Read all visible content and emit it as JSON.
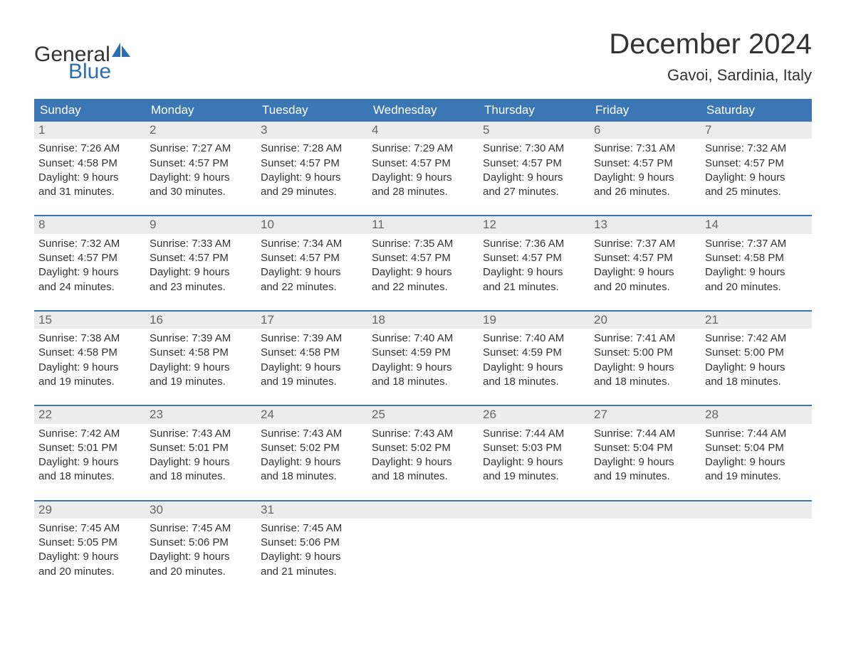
{
  "logo": {
    "text_general": "General",
    "text_blue": "Blue",
    "sail_color": "#2c6fb0",
    "general_color": "#333333",
    "blue_color": "#2c6fb0"
  },
  "header": {
    "month_title": "December 2024",
    "location": "Gavoi, Sardinia, Italy"
  },
  "colors": {
    "header_bg": "#3a77b4",
    "header_text": "#ffffff",
    "day_number_bg": "#ececec",
    "day_number_text": "#666666",
    "body_text": "#333333",
    "week_divider": "#3a77b4",
    "background": "#ffffff"
  },
  "typography": {
    "month_title_fontsize": 40,
    "location_fontsize": 22,
    "weekday_fontsize": 17,
    "day_number_fontsize": 17,
    "cell_fontsize": 15
  },
  "calendar": {
    "type": "table",
    "columns": [
      "Sunday",
      "Monday",
      "Tuesday",
      "Wednesday",
      "Thursday",
      "Friday",
      "Saturday"
    ],
    "weeks": [
      [
        {
          "n": "1",
          "sr": "Sunrise: 7:26 AM",
          "ss": "Sunset: 4:58 PM",
          "d1": "Daylight: 9 hours",
          "d2": "and 31 minutes."
        },
        {
          "n": "2",
          "sr": "Sunrise: 7:27 AM",
          "ss": "Sunset: 4:57 PM",
          "d1": "Daylight: 9 hours",
          "d2": "and 30 minutes."
        },
        {
          "n": "3",
          "sr": "Sunrise: 7:28 AM",
          "ss": "Sunset: 4:57 PM",
          "d1": "Daylight: 9 hours",
          "d2": "and 29 minutes."
        },
        {
          "n": "4",
          "sr": "Sunrise: 7:29 AM",
          "ss": "Sunset: 4:57 PM",
          "d1": "Daylight: 9 hours",
          "d2": "and 28 minutes."
        },
        {
          "n": "5",
          "sr": "Sunrise: 7:30 AM",
          "ss": "Sunset: 4:57 PM",
          "d1": "Daylight: 9 hours",
          "d2": "and 27 minutes."
        },
        {
          "n": "6",
          "sr": "Sunrise: 7:31 AM",
          "ss": "Sunset: 4:57 PM",
          "d1": "Daylight: 9 hours",
          "d2": "and 26 minutes."
        },
        {
          "n": "7",
          "sr": "Sunrise: 7:32 AM",
          "ss": "Sunset: 4:57 PM",
          "d1": "Daylight: 9 hours",
          "d2": "and 25 minutes."
        }
      ],
      [
        {
          "n": "8",
          "sr": "Sunrise: 7:32 AM",
          "ss": "Sunset: 4:57 PM",
          "d1": "Daylight: 9 hours",
          "d2": "and 24 minutes."
        },
        {
          "n": "9",
          "sr": "Sunrise: 7:33 AM",
          "ss": "Sunset: 4:57 PM",
          "d1": "Daylight: 9 hours",
          "d2": "and 23 minutes."
        },
        {
          "n": "10",
          "sr": "Sunrise: 7:34 AM",
          "ss": "Sunset: 4:57 PM",
          "d1": "Daylight: 9 hours",
          "d2": "and 22 minutes."
        },
        {
          "n": "11",
          "sr": "Sunrise: 7:35 AM",
          "ss": "Sunset: 4:57 PM",
          "d1": "Daylight: 9 hours",
          "d2": "and 22 minutes."
        },
        {
          "n": "12",
          "sr": "Sunrise: 7:36 AM",
          "ss": "Sunset: 4:57 PM",
          "d1": "Daylight: 9 hours",
          "d2": "and 21 minutes."
        },
        {
          "n": "13",
          "sr": "Sunrise: 7:37 AM",
          "ss": "Sunset: 4:57 PM",
          "d1": "Daylight: 9 hours",
          "d2": "and 20 minutes."
        },
        {
          "n": "14",
          "sr": "Sunrise: 7:37 AM",
          "ss": "Sunset: 4:58 PM",
          "d1": "Daylight: 9 hours",
          "d2": "and 20 minutes."
        }
      ],
      [
        {
          "n": "15",
          "sr": "Sunrise: 7:38 AM",
          "ss": "Sunset: 4:58 PM",
          "d1": "Daylight: 9 hours",
          "d2": "and 19 minutes."
        },
        {
          "n": "16",
          "sr": "Sunrise: 7:39 AM",
          "ss": "Sunset: 4:58 PM",
          "d1": "Daylight: 9 hours",
          "d2": "and 19 minutes."
        },
        {
          "n": "17",
          "sr": "Sunrise: 7:39 AM",
          "ss": "Sunset: 4:58 PM",
          "d1": "Daylight: 9 hours",
          "d2": "and 19 minutes."
        },
        {
          "n": "18",
          "sr": "Sunrise: 7:40 AM",
          "ss": "Sunset: 4:59 PM",
          "d1": "Daylight: 9 hours",
          "d2": "and 18 minutes."
        },
        {
          "n": "19",
          "sr": "Sunrise: 7:40 AM",
          "ss": "Sunset: 4:59 PM",
          "d1": "Daylight: 9 hours",
          "d2": "and 18 minutes."
        },
        {
          "n": "20",
          "sr": "Sunrise: 7:41 AM",
          "ss": "Sunset: 5:00 PM",
          "d1": "Daylight: 9 hours",
          "d2": "and 18 minutes."
        },
        {
          "n": "21",
          "sr": "Sunrise: 7:42 AM",
          "ss": "Sunset: 5:00 PM",
          "d1": "Daylight: 9 hours",
          "d2": "and 18 minutes."
        }
      ],
      [
        {
          "n": "22",
          "sr": "Sunrise: 7:42 AM",
          "ss": "Sunset: 5:01 PM",
          "d1": "Daylight: 9 hours",
          "d2": "and 18 minutes."
        },
        {
          "n": "23",
          "sr": "Sunrise: 7:43 AM",
          "ss": "Sunset: 5:01 PM",
          "d1": "Daylight: 9 hours",
          "d2": "and 18 minutes."
        },
        {
          "n": "24",
          "sr": "Sunrise: 7:43 AM",
          "ss": "Sunset: 5:02 PM",
          "d1": "Daylight: 9 hours",
          "d2": "and 18 minutes."
        },
        {
          "n": "25",
          "sr": "Sunrise: 7:43 AM",
          "ss": "Sunset: 5:02 PM",
          "d1": "Daylight: 9 hours",
          "d2": "and 18 minutes."
        },
        {
          "n": "26",
          "sr": "Sunrise: 7:44 AM",
          "ss": "Sunset: 5:03 PM",
          "d1": "Daylight: 9 hours",
          "d2": "and 19 minutes."
        },
        {
          "n": "27",
          "sr": "Sunrise: 7:44 AM",
          "ss": "Sunset: 5:04 PM",
          "d1": "Daylight: 9 hours",
          "d2": "and 19 minutes."
        },
        {
          "n": "28",
          "sr": "Sunrise: 7:44 AM",
          "ss": "Sunset: 5:04 PM",
          "d1": "Daylight: 9 hours",
          "d2": "and 19 minutes."
        }
      ],
      [
        {
          "n": "29",
          "sr": "Sunrise: 7:45 AM",
          "ss": "Sunset: 5:05 PM",
          "d1": "Daylight: 9 hours",
          "d2": "and 20 minutes."
        },
        {
          "n": "30",
          "sr": "Sunrise: 7:45 AM",
          "ss": "Sunset: 5:06 PM",
          "d1": "Daylight: 9 hours",
          "d2": "and 20 minutes."
        },
        {
          "n": "31",
          "sr": "Sunrise: 7:45 AM",
          "ss": "Sunset: 5:06 PM",
          "d1": "Daylight: 9 hours",
          "d2": "and 21 minutes."
        },
        null,
        null,
        null,
        null
      ]
    ]
  }
}
